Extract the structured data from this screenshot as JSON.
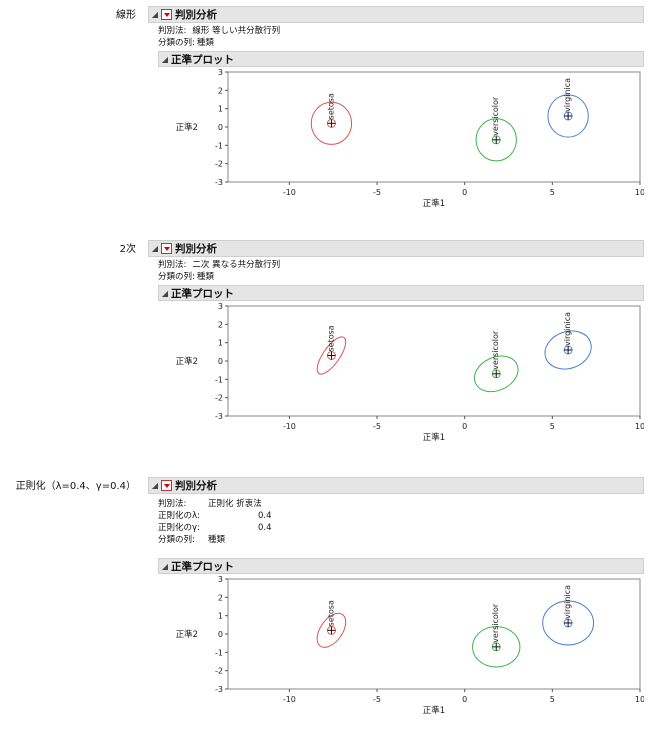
{
  "title": "判別分析",
  "subtitle": "正準プロット",
  "sections": [
    {
      "label": "線形",
      "rows": [
        {
          "key": "判別法:",
          "value": "線形 等しい共分散行列"
        },
        {
          "key": "分類の列:",
          "value": "種類"
        }
      ]
    },
    {
      "label": "2次",
      "rows": [
        {
          "key": "判別法:",
          "value": "二次 異なる共分散行列"
        },
        {
          "key": "分類の列:",
          "value": "種類"
        }
      ]
    },
    {
      "label": "正則化（λ=0.4、γ=0.4）",
      "rows": [
        {
          "key": "判別法:",
          "value": "正則化 折衷法"
        },
        {
          "key": "正則化のλ:",
          "value": "0.4"
        },
        {
          "key": "正則化のγ:",
          "value": "0.4"
        },
        {
          "key": "分類の列:",
          "value": "種類"
        }
      ]
    }
  ],
  "chart_data": [
    {
      "type": "scatter",
      "title": "正準プロット",
      "xlabel": "正準1",
      "ylabel": "正準2",
      "xlim": [
        -13.5,
        10
      ],
      "ylim": [
        -3,
        3
      ],
      "xticks": [
        -10,
        -5,
        0,
        5,
        10
      ],
      "yticks": [
        -3,
        -2,
        -1,
        0,
        1,
        2,
        3
      ],
      "grid": false,
      "series": [
        {
          "name": "setosa",
          "color": "#d9534f",
          "center": [
            -7.6,
            0.2
          ],
          "ellipse": {
            "rx": 1.15,
            "ry": 1.15,
            "angle": 0
          }
        },
        {
          "name": "versicolor",
          "color": "#3cb44b",
          "center": [
            1.8,
            -0.7
          ],
          "ellipse": {
            "rx": 1.15,
            "ry": 1.15,
            "angle": 0
          }
        },
        {
          "name": "virginica",
          "color": "#4a7fd4",
          "center": [
            5.9,
            0.6
          ],
          "ellipse": {
            "rx": 1.15,
            "ry": 1.15,
            "angle": 0
          }
        }
      ]
    },
    {
      "type": "scatter",
      "title": "正準プロット",
      "xlabel": "正準1",
      "ylabel": "正準2",
      "xlim": [
        -13.5,
        10
      ],
      "ylim": [
        -3,
        3
      ],
      "xticks": [
        -10,
        -5,
        0,
        5,
        10
      ],
      "yticks": [
        -3,
        -2,
        -1,
        0,
        1,
        2,
        3
      ],
      "grid": false,
      "series": [
        {
          "name": "setosa",
          "color": "#d9534f",
          "center": [
            -7.6,
            0.3
          ],
          "ellipse": {
            "rx": 1.25,
            "ry": 0.45,
            "angle": -55
          }
        },
        {
          "name": "versicolor",
          "color": "#3cb44b",
          "center": [
            1.8,
            -0.7
          ],
          "ellipse": {
            "rx": 1.3,
            "ry": 0.9,
            "angle": -25
          }
        },
        {
          "name": "virginica",
          "color": "#4a7fd4",
          "center": [
            5.9,
            0.6
          ],
          "ellipse": {
            "rx": 1.35,
            "ry": 1.0,
            "angle": -20
          }
        }
      ]
    },
    {
      "type": "scatter",
      "title": "正準プロット",
      "xlabel": "正準1",
      "ylabel": "正準2",
      "xlim": [
        -13.5,
        10
      ],
      "ylim": [
        -3,
        3
      ],
      "xticks": [
        -10,
        -5,
        0,
        5,
        10
      ],
      "yticks": [
        -3,
        -2,
        -1,
        0,
        1,
        2,
        3
      ],
      "grid": false,
      "series": [
        {
          "name": "setosa",
          "color": "#d9534f",
          "center": [
            -7.6,
            0.2
          ],
          "ellipse": {
            "rx": 1.1,
            "ry": 0.6,
            "angle": -55
          }
        },
        {
          "name": "versicolor",
          "color": "#3cb44b",
          "center": [
            1.8,
            -0.7
          ],
          "ellipse": {
            "rx": 1.35,
            "ry": 1.1,
            "angle": 0
          }
        },
        {
          "name": "virginica",
          "color": "#4a7fd4",
          "center": [
            5.9,
            0.6
          ],
          "ellipse": {
            "rx": 1.45,
            "ry": 1.2,
            "angle": 0
          }
        }
      ]
    }
  ]
}
